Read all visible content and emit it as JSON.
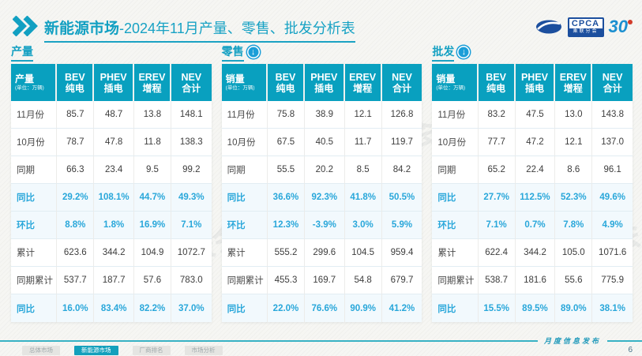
{
  "header": {
    "title_bold": "新能源市场",
    "title_rest": "-2024年11月产量、零售、批发分析表"
  },
  "logo": {
    "cpca": "CPCA",
    "cpca_sub": "乘联分会",
    "anniversary": "30"
  },
  "icons": {
    "down_arrow": "↓"
  },
  "watermark": "CPCA 乘联会",
  "colors": {
    "teal_header": "#09a0bf",
    "title_teal": "#13a0c2",
    "percent_blue": "#29a7da",
    "logo_blue": "#1c4f9e",
    "page_background": "#f4f4f1"
  },
  "chart_data": [
    {
      "type": "table",
      "id": "production",
      "section_title": "产量",
      "has_arrow": false,
      "corner_label": "产量",
      "corner_unit": "(单位：万辆)",
      "columns": [
        {
          "en": "BEV",
          "cn": "纯电"
        },
        {
          "en": "PHEV",
          "cn": "插电"
        },
        {
          "en": "EREV",
          "cn": "增程"
        },
        {
          "en": "NEV",
          "cn": "合计"
        }
      ],
      "rows": [
        {
          "label": "11月份",
          "values": [
            "85.7",
            "48.7",
            "13.8",
            "148.1"
          ],
          "highlight": false
        },
        {
          "label": "10月份",
          "values": [
            "78.7",
            "47.8",
            "11.8",
            "138.3"
          ],
          "highlight": false
        },
        {
          "label": "同期",
          "values": [
            "66.3",
            "23.4",
            "9.5",
            "99.2"
          ],
          "highlight": false
        },
        {
          "label": "同比",
          "values": [
            "29.2%",
            "108.1%",
            "44.7%",
            "49.3%"
          ],
          "highlight": true
        },
        {
          "label": "环比",
          "values": [
            "8.8%",
            "1.8%",
            "16.9%",
            "7.1%"
          ],
          "highlight": true
        },
        {
          "label": "累计",
          "values": [
            "623.6",
            "344.2",
            "104.9",
            "1072.7"
          ],
          "highlight": false
        },
        {
          "label": "同期累计",
          "values": [
            "537.7",
            "187.7",
            "57.6",
            "783.0"
          ],
          "highlight": false
        },
        {
          "label": "同比",
          "values": [
            "16.0%",
            "83.4%",
            "82.2%",
            "37.0%"
          ],
          "highlight": true
        }
      ]
    },
    {
      "type": "table",
      "id": "retail",
      "section_title": "零售",
      "has_arrow": true,
      "corner_label": "销量",
      "corner_unit": "(单位：万辆)",
      "columns": [
        {
          "en": "BEV",
          "cn": "纯电"
        },
        {
          "en": "PHEV",
          "cn": "插电"
        },
        {
          "en": "EREV",
          "cn": "增程"
        },
        {
          "en": "NEV",
          "cn": "合计"
        }
      ],
      "rows": [
        {
          "label": "11月份",
          "values": [
            "75.8",
            "38.9",
            "12.1",
            "126.8"
          ],
          "highlight": false
        },
        {
          "label": "10月份",
          "values": [
            "67.5",
            "40.5",
            "11.7",
            "119.7"
          ],
          "highlight": false
        },
        {
          "label": "同期",
          "values": [
            "55.5",
            "20.2",
            "8.5",
            "84.2"
          ],
          "highlight": false
        },
        {
          "label": "同比",
          "values": [
            "36.6%",
            "92.3%",
            "41.8%",
            "50.5%"
          ],
          "highlight": true
        },
        {
          "label": "环比",
          "values": [
            "12.3%",
            "-3.9%",
            "3.0%",
            "5.9%"
          ],
          "highlight": true
        },
        {
          "label": "累计",
          "values": [
            "555.2",
            "299.6",
            "104.5",
            "959.4"
          ],
          "highlight": false
        },
        {
          "label": "同期累计",
          "values": [
            "455.3",
            "169.7",
            "54.8",
            "679.7"
          ],
          "highlight": false
        },
        {
          "label": "同比",
          "values": [
            "22.0%",
            "76.6%",
            "90.9%",
            "41.2%"
          ],
          "highlight": true
        }
      ]
    },
    {
      "type": "table",
      "id": "wholesale",
      "section_title": "批发",
      "has_arrow": true,
      "corner_label": "销量",
      "corner_unit": "(单位：万辆)",
      "columns": [
        {
          "en": "BEV",
          "cn": "纯电"
        },
        {
          "en": "PHEV",
          "cn": "插电"
        },
        {
          "en": "EREV",
          "cn": "增程"
        },
        {
          "en": "NEV",
          "cn": "合计"
        }
      ],
      "rows": [
        {
          "label": "11月份",
          "values": [
            "83.2",
            "47.5",
            "13.0",
            "143.8"
          ],
          "highlight": false
        },
        {
          "label": "10月份",
          "values": [
            "77.7",
            "47.2",
            "12.1",
            "137.0"
          ],
          "highlight": false
        },
        {
          "label": "同期",
          "values": [
            "65.2",
            "22.4",
            "8.6",
            "96.1"
          ],
          "highlight": false
        },
        {
          "label": "同比",
          "values": [
            "27.7%",
            "112.5%",
            "52.3%",
            "49.6%"
          ],
          "highlight": true
        },
        {
          "label": "环比",
          "values": [
            "7.1%",
            "0.7%",
            "7.8%",
            "4.9%"
          ],
          "highlight": true
        },
        {
          "label": "累计",
          "values": [
            "622.4",
            "344.2",
            "105.0",
            "1071.6"
          ],
          "highlight": false
        },
        {
          "label": "同期累计",
          "values": [
            "538.7",
            "181.6",
            "55.6",
            "775.9"
          ],
          "highlight": false
        },
        {
          "label": "同比",
          "values": [
            "15.5%",
            "89.5%",
            "89.0%",
            "38.1%"
          ],
          "highlight": true
        }
      ]
    }
  ],
  "footer": {
    "tabs": [
      {
        "label": "总体市场",
        "active": false
      },
      {
        "label": "新能源市场",
        "active": true
      },
      {
        "label": "厂商排名",
        "active": false
      },
      {
        "label": "市场分析",
        "active": false
      }
    ],
    "caption": "月度信息发布",
    "page_number": "6"
  }
}
